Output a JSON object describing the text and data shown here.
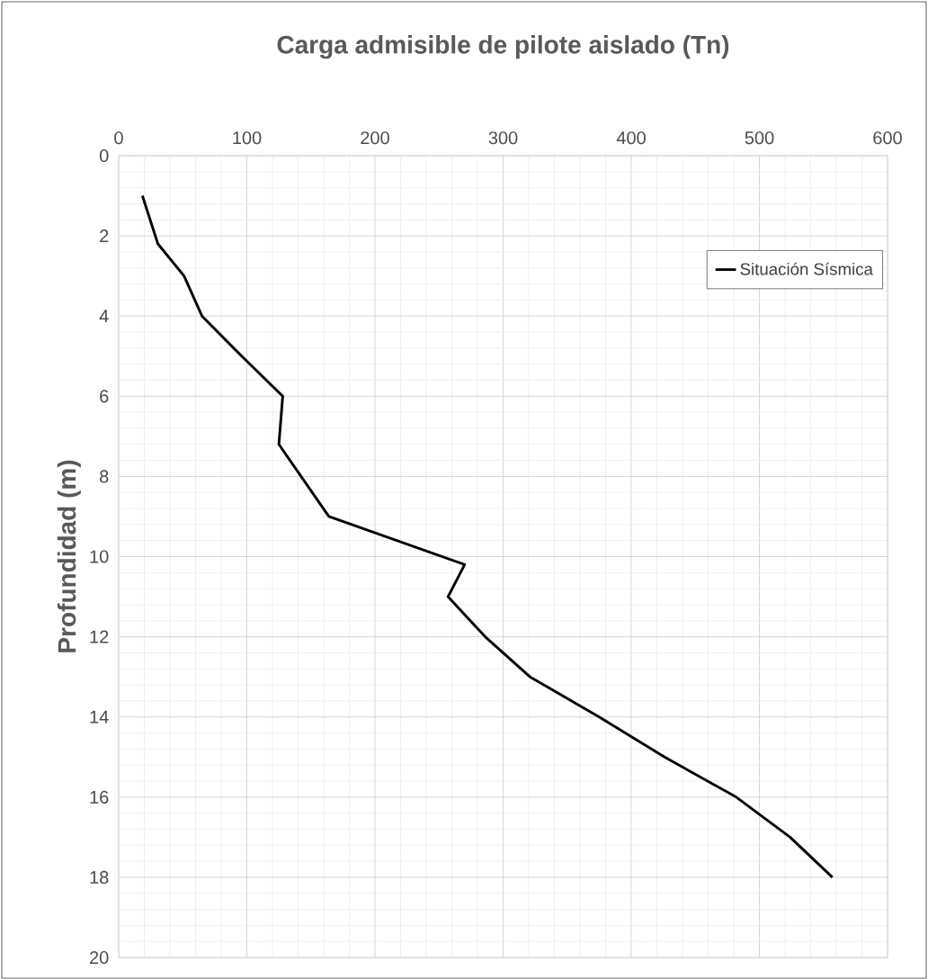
{
  "chart_data": {
    "type": "line",
    "title": "Carga admisible de pilote aislado (Tn)",
    "ylabel": "Profundidad (m)",
    "xlim": [
      0,
      600
    ],
    "xticks": [
      0,
      100,
      200,
      300,
      400,
      500,
      600
    ],
    "ylim": [
      20,
      0
    ],
    "yticks": [
      0,
      2,
      4,
      6,
      8,
      10,
      12,
      14,
      16,
      18,
      20
    ],
    "grid": true,
    "legend": "top right",
    "marker": "none",
    "line_style": "solid",
    "series": [
      {
        "name": "Situación Sísmica",
        "color": "#000000",
        "x": [
          18.5,
          30.6,
          51,
          65,
          96,
          128,
          125,
          164,
          270,
          257,
          286,
          321,
          375,
          426,
          482,
          524,
          557
        ],
        "values": [
          1,
          2.2,
          3,
          4,
          5,
          6,
          7.2,
          9,
          10.2,
          11,
          12,
          13,
          14,
          15,
          16,
          17,
          18
        ]
      }
    ]
  }
}
